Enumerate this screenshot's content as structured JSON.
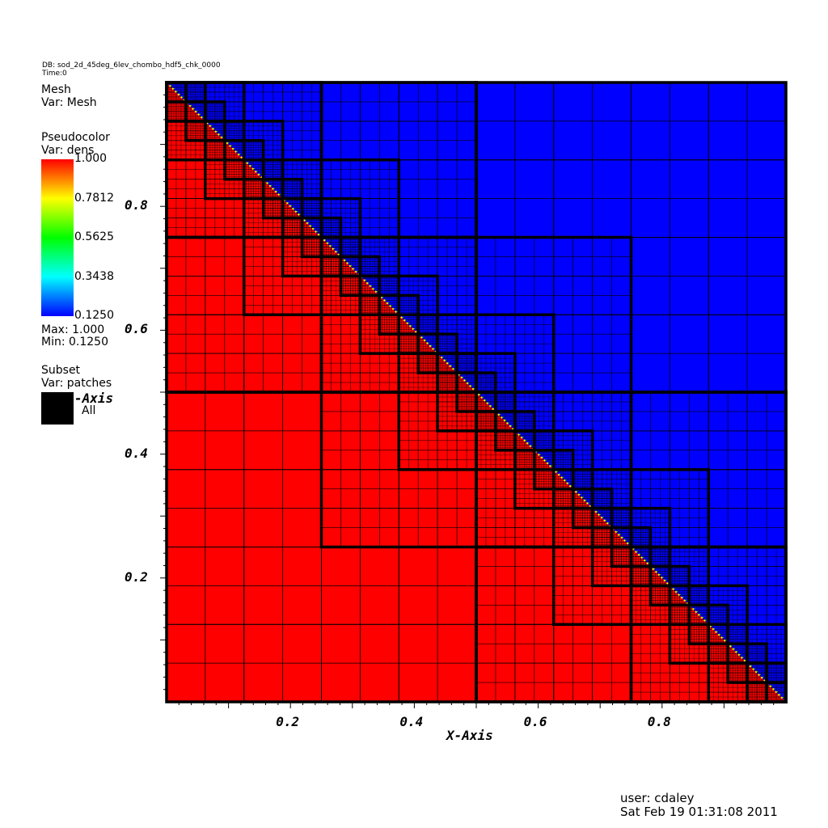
{
  "header": {
    "db_line": "DB: sod_2d_45deg_6lev_chombo_hdf5_chk_0000",
    "time_line": "Time:0"
  },
  "legend": {
    "mesh_title": "Mesh",
    "mesh_var": "Var: Mesh",
    "pseudo_title": "Pseudocolor",
    "pseudo_var": "Var: dens",
    "colorbar_labels": [
      "1.000",
      "0.7812",
      "0.5625",
      "0.3438",
      "0.1250"
    ],
    "max_text": "Max:  1.000",
    "min_text": "Min:  0.1250",
    "subset_title": "Subset",
    "subset_var": "Var: patches",
    "subset_swatch_label": "-Axis",
    "subset_item": "All",
    "colors": {
      "high": "#ff0000",
      "mid_high": "#ffff00",
      "mid": "#00ff00",
      "mid_low": "#00ffff",
      "low": "#0000ff",
      "swatch": "#000000"
    }
  },
  "chart_data": {
    "type": "heatmap",
    "title": "",
    "xlabel": "X-Axis",
    "ylabel": "",
    "xlim": [
      0,
      1
    ],
    "ylim": [
      0,
      1
    ],
    "x_ticks": [
      "0.2",
      "0.4",
      "0.6",
      "0.8"
    ],
    "y_ticks": [
      "0.2",
      "0.4",
      "0.6",
      "0.8"
    ],
    "variable": "dens",
    "value_range": [
      0.125,
      1.0
    ],
    "region_high": {
      "value": 1.0,
      "where": "below the diagonal x + y = 1"
    },
    "region_low": {
      "value": 0.125,
      "where": "above the diagonal x + y = 1"
    },
    "refinement_levels": 6,
    "grid": true
  },
  "footer": {
    "user": "user: cdaley",
    "date": "Sat Feb 19 01:31:08 2011"
  }
}
